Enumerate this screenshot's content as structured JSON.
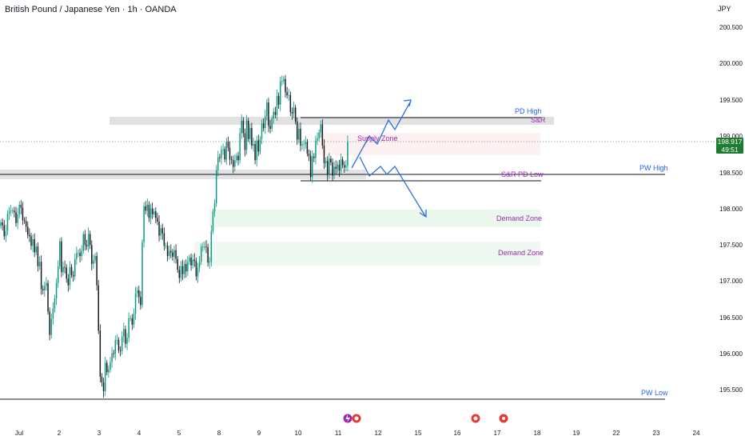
{
  "header": {
    "title": "British Pound / Japanese Yen · 1h · OANDA",
    "currency": "JPY"
  },
  "price_tag": {
    "price": "198.917",
    "countdown": "49:51",
    "color": "#1e7b32"
  },
  "y_axis": {
    "ticks": [
      "200.500",
      "200.000",
      "199.500",
      "199.000",
      "198.500",
      "198.000",
      "197.500",
      "197.000",
      "196.500",
      "196.000",
      "195.500"
    ]
  },
  "x_axis": {
    "ticks": [
      "Jul",
      "2",
      "3",
      "4",
      "5",
      "8",
      "9",
      "10",
      "11",
      "12",
      "15",
      "16",
      "17",
      "18",
      "19",
      "22",
      "23",
      "24"
    ]
  },
  "annotations": {
    "pd_high": "PD High",
    "sr_top": "S&R",
    "supply_zone": "Supply Zone",
    "sr_pd_low": "S&R PD Low",
    "pw_high": "PW High",
    "demand_zone_1": "Demand Zone",
    "demand_zone_2": "Demand Zone",
    "pw_low": "PW Low"
  },
  "colors": {
    "up": "#089981",
    "down": "#131722",
    "label_purple": "#9c27b0",
    "label_blue": "#2962ff",
    "arrow": "#2e6fe8",
    "supply_fill": "#d9d9d9",
    "demand_fill": "#e8f5e9"
  },
  "chart_data": {
    "type": "candlestick",
    "series_close": [
      197.82,
      197.78,
      197.63,
      197.7,
      197.94,
      197.97,
      197.98,
      197.98,
      197.96,
      197.81,
      197.93,
      198.06,
      198.02,
      197.85,
      197.84,
      197.76,
      197.65,
      197.63,
      197.5,
      197.59,
      197.41,
      197.49,
      197.22,
      197.28,
      196.91,
      196.89,
      196.95,
      196.99,
      196.6,
      196.28,
      196.5,
      196.64,
      196.78,
      196.99,
      197.22,
      197.56,
      197.14,
      197.21,
      197.2,
      197.05,
      196.96,
      197.21,
      197.1,
      197.08,
      197.32,
      197.4,
      197.4,
      197.36,
      197.43,
      197.66,
      197.51,
      197.49,
      197.66,
      197.51,
      197.25,
      197.3,
      197.36,
      196.96,
      196.34,
      195.71,
      195.63,
      195.51,
      195.9,
      195.77,
      195.81,
      195.91,
      196.03,
      196.02,
      196.21,
      196.21,
      196.07,
      196.06,
      196.26,
      196.36,
      196.16,
      196.24,
      196.51,
      196.51,
      196.42,
      196.57,
      196.85,
      196.89,
      196.8,
      196.69,
      197.55,
      198.04,
      197.98,
      198.06,
      197.88,
      198.01,
      197.93,
      197.97,
      197.88,
      197.83,
      197.64,
      197.74,
      197.67,
      197.5,
      197.5,
      197.36,
      197.43,
      197.41,
      197.35,
      197.44,
      197.32,
      197.17,
      197.06,
      197.22,
      197.11,
      197.25,
      197.15,
      197.28,
      197.34,
      197.23,
      197.31,
      197.29,
      197.08,
      197.2,
      197.28,
      197.49,
      197.49,
      197.49,
      197.48,
      197.27,
      197.28,
      197.7,
      197.97,
      198.08,
      198.53,
      198.71,
      198.7,
      198.81,
      198.82,
      198.68,
      198.92,
      198.84,
      198.68,
      198.67,
      198.58,
      198.67,
      198.73,
      198.67,
      199.04,
      199.21,
      199.04,
      198.81,
      199.21,
      198.96,
      199.11,
      198.87,
      198.89,
      198.67,
      198.94,
      198.79,
      198.96,
      199.17,
      199.11,
      199.27,
      199.46,
      199.14,
      199.1,
      199.24,
      199.33,
      199.29,
      199.55,
      199.43,
      199.75,
      199.75,
      199.78,
      199.6,
      199.56,
      199.56,
      199.33,
      199.31,
      199.39,
      199.2,
      198.95,
      199.1,
      198.87,
      198.88,
      198.89,
      198.92,
      198.76,
      198.73,
      198.44,
      198.72,
      198.7,
      198.94,
      198.97,
      199.05,
      199.16,
      198.87,
      198.63,
      198.66,
      198.48,
      198.69,
      198.64,
      198.46,
      198.58,
      198.55,
      198.61,
      198.53,
      198.68,
      198.6,
      198.57,
      198.6,
      198.92
    ],
    "ylim": [
      195.3,
      200.7
    ],
    "levels": {
      "pd_high": 199.25,
      "pw_high": 198.45,
      "pd_low": 198.37,
      "pw_low": 195.36
    }
  }
}
